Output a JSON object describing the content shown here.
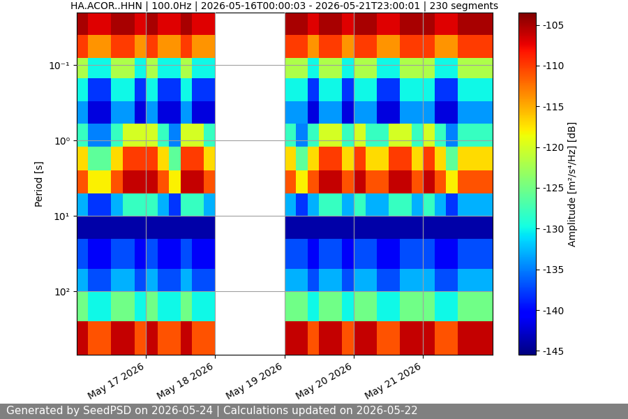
{
  "chart_data": {
    "type": "heatmap",
    "title": "HA.ACOR..HHN | 100.0Hz | 2026-05-16T00:00:03 - 2026-05-21T23:00:01 | 230 segments",
    "y_label": "Period [s]",
    "footer": "Generated by SeedPSD on 2026-05-24 | Calculations updated on 2026-05-22",
    "log": "y",
    "grid": true,
    "xlim": [
      "2026-05-16T00:00",
      "2026-05-22T00:00"
    ],
    "xticks": [
      {
        "value": "2026-05-17T00:00",
        "label": "May 17 2026"
      },
      {
        "value": "2026-05-18T00:00",
        "label": "May 18 2026"
      },
      {
        "value": "2026-05-19T00:00",
        "label": "May 19 2026"
      },
      {
        "value": "2026-05-20T00:00",
        "label": "May 20 2026"
      },
      {
        "value": "2026-05-21T00:00",
        "label": "May 21 2026"
      }
    ],
    "ylim": [
      700,
      0.02
    ],
    "yticks": [
      {
        "value": 0.1,
        "label": "10⁻¹"
      },
      {
        "value": 1,
        "label": "10⁰"
      },
      {
        "value": 10,
        "label": "10¹"
      },
      {
        "value": 100,
        "label": "10²"
      }
    ],
    "x_edges": [
      "2026-05-16T00:00",
      "2026-05-16T04:00",
      "2026-05-16T08:00",
      "2026-05-16T12:00",
      "2026-05-16T16:00",
      "2026-05-16T20:00",
      "2026-05-17T00:00",
      "2026-05-17T04:00",
      "2026-05-17T08:00",
      "2026-05-17T12:00",
      "2026-05-17T16:00",
      "2026-05-17T20:00",
      "2026-05-18T00:00",
      "2026-05-18T04:00",
      "2026-05-18T08:00",
      "2026-05-18T12:00",
      "2026-05-18T16:00",
      "2026-05-18T20:00",
      "2026-05-19T00:00",
      "2026-05-19T04:00",
      "2026-05-19T08:00",
      "2026-05-19T12:00",
      "2026-05-19T16:00",
      "2026-05-19T20:00",
      "2026-05-20T00:00",
      "2026-05-20T04:00",
      "2026-05-20T08:00",
      "2026-05-20T12:00",
      "2026-05-20T16:00",
      "2026-05-20T20:00",
      "2026-05-21T00:00",
      "2026-05-21T04:00",
      "2026-05-21T08:00",
      "2026-05-21T12:00",
      "2026-05-21T16:00",
      "2026-05-21T20:00",
      "2026-05-22T00:00"
    ],
    "period_edges": [
      0.02,
      0.04,
      0.08,
      0.15,
      0.3,
      0.6,
      1.2,
      2.5,
      5,
      10,
      20,
      50,
      100,
      250,
      700
    ],
    "cells": [
      [
        -105,
        -107,
        -107,
        -105,
        -105,
        -107,
        -105,
        -107,
        -107,
        -105,
        -107,
        -107,
        null,
        null,
        null,
        null,
        null,
        null,
        -105,
        -105,
        -107,
        -105,
        -105,
        -107,
        -105,
        -105,
        -107,
        -107,
        -105,
        -105,
        -105,
        -107,
        -107,
        -105,
        -105,
        -105
      ],
      [
        -110,
        -114,
        -114,
        -110,
        -110,
        -114,
        -110,
        -114,
        -114,
        -110,
        -114,
        -114,
        null,
        null,
        null,
        null,
        null,
        null,
        -110,
        -110,
        -114,
        -110,
        -110,
        -114,
        -110,
        -110,
        -114,
        -114,
        -110,
        -110,
        -110,
        -114,
        -114,
        -110,
        -110,
        -110
      ],
      [
        -122,
        -130,
        -130,
        -122,
        -122,
        -130,
        -122,
        -130,
        -130,
        -122,
        -130,
        -130,
        null,
        null,
        null,
        null,
        null,
        null,
        -122,
        -122,
        -130,
        -122,
        -122,
        -130,
        -122,
        -122,
        -130,
        -130,
        -122,
        -122,
        -122,
        -130,
        -130,
        -122,
        -122,
        -122
      ],
      [
        -130,
        -138,
        -138,
        -130,
        -130,
        -138,
        -130,
        -138,
        -138,
        -130,
        -138,
        -138,
        null,
        null,
        null,
        null,
        null,
        null,
        -130,
        -130,
        -138,
        -130,
        -130,
        -138,
        -130,
        -130,
        -138,
        -138,
        -130,
        -130,
        -130,
        -138,
        -138,
        -130,
        -130,
        -130
      ],
      [
        -134,
        -142,
        -142,
        -134,
        -134,
        -142,
        -134,
        -142,
        -142,
        -134,
        -142,
        -142,
        null,
        null,
        null,
        null,
        null,
        null,
        -134,
        -134,
        -142,
        -134,
        -134,
        -142,
        -134,
        -134,
        -142,
        -142,
        -134,
        -134,
        -134,
        -142,
        -142,
        -134,
        -134,
        -134
      ],
      [
        -128,
        -135,
        -135,
        -128,
        -120,
        -120,
        -120,
        -128,
        -135,
        -120,
        -120,
        -128,
        null,
        null,
        null,
        null,
        null,
        null,
        -128,
        -135,
        -128,
        -120,
        -120,
        -128,
        -120,
        -128,
        -128,
        -120,
        -120,
        -128,
        -120,
        -128,
        -135,
        -128,
        -128,
        -128
      ],
      [
        -117,
        -126,
        -126,
        -117,
        -110,
        -110,
        -110,
        -117,
        -126,
        -110,
        -110,
        -117,
        null,
        null,
        null,
        null,
        null,
        null,
        -117,
        -126,
        -117,
        -110,
        -110,
        -117,
        -110,
        -117,
        -117,
        -110,
        -110,
        -117,
        -110,
        -117,
        -126,
        -117,
        -117,
        -117
      ],
      [
        -111,
        -118,
        -118,
        -111,
        -106,
        -106,
        -106,
        -111,
        -118,
        -106,
        -106,
        -111,
        null,
        null,
        null,
        null,
        null,
        null,
        -111,
        -118,
        -111,
        -106,
        -106,
        -111,
        -106,
        -111,
        -111,
        -106,
        -106,
        -111,
        -106,
        -111,
        -118,
        -111,
        -111,
        -111
      ],
      [
        -133,
        -138,
        -138,
        -133,
        -128,
        -128,
        -128,
        -133,
        -138,
        -128,
        -128,
        -133,
        null,
        null,
        null,
        null,
        null,
        null,
        -133,
        -138,
        -133,
        -128,
        -128,
        -133,
        -128,
        -133,
        -133,
        -128,
        -128,
        -133,
        -128,
        -133,
        -138,
        -133,
        -133,
        -133
      ],
      [
        -144,
        -144,
        -144,
        -144,
        -144,
        -144,
        -144,
        -144,
        -144,
        -144,
        -144,
        -144,
        null,
        null,
        null,
        null,
        null,
        null,
        -144,
        -144,
        -144,
        -144,
        -144,
        -144,
        -144,
        -144,
        -144,
        -144,
        -144,
        -144,
        -144,
        -144,
        -144,
        -144,
        -144,
        -144
      ],
      [
        -137,
        -141,
        -141,
        -137,
        -137,
        -141,
        -137,
        -141,
        -141,
        -137,
        -141,
        -141,
        null,
        null,
        null,
        null,
        null,
        null,
        -137,
        -137,
        -141,
        -137,
        -137,
        -141,
        -137,
        -137,
        -141,
        -141,
        -137,
        -137,
        -137,
        -141,
        -141,
        -137,
        -137,
        -137
      ],
      [
        -133,
        -137,
        -137,
        -133,
        -133,
        -137,
        -133,
        -137,
        -137,
        -133,
        -137,
        -137,
        null,
        null,
        null,
        null,
        null,
        null,
        -133,
        -133,
        -137,
        -133,
        -133,
        -137,
        -133,
        -133,
        -137,
        -137,
        -133,
        -133,
        -133,
        -137,
        -137,
        -133,
        -133,
        -133
      ],
      [
        -125,
        -130,
        -130,
        -125,
        -125,
        -130,
        -125,
        -130,
        -130,
        -125,
        -130,
        -130,
        null,
        null,
        null,
        null,
        null,
        null,
        -125,
        -125,
        -130,
        -125,
        -125,
        -130,
        -125,
        -125,
        -130,
        -130,
        -125,
        -125,
        -125,
        -130,
        -130,
        -125,
        -125,
        -125
      ],
      [
        -106,
        -111,
        -111,
        -106,
        -106,
        -111,
        -106,
        -111,
        -111,
        -106,
        -111,
        -111,
        null,
        null,
        null,
        null,
        null,
        null,
        -106,
        -106,
        -111,
        -106,
        -106,
        -111,
        -106,
        -106,
        -111,
        -111,
        -106,
        -106,
        -106,
        -111,
        -111,
        -106,
        -106,
        -106
      ]
    ],
    "colorbar": {
      "label": "Amplitude [m²/s⁴/Hz] [dB]",
      "lim": [
        -145.5,
        -103.5
      ],
      "ticks": [
        -145,
        -140,
        -135,
        -130,
        -125,
        -120,
        -115,
        -110,
        -105
      ]
    }
  }
}
